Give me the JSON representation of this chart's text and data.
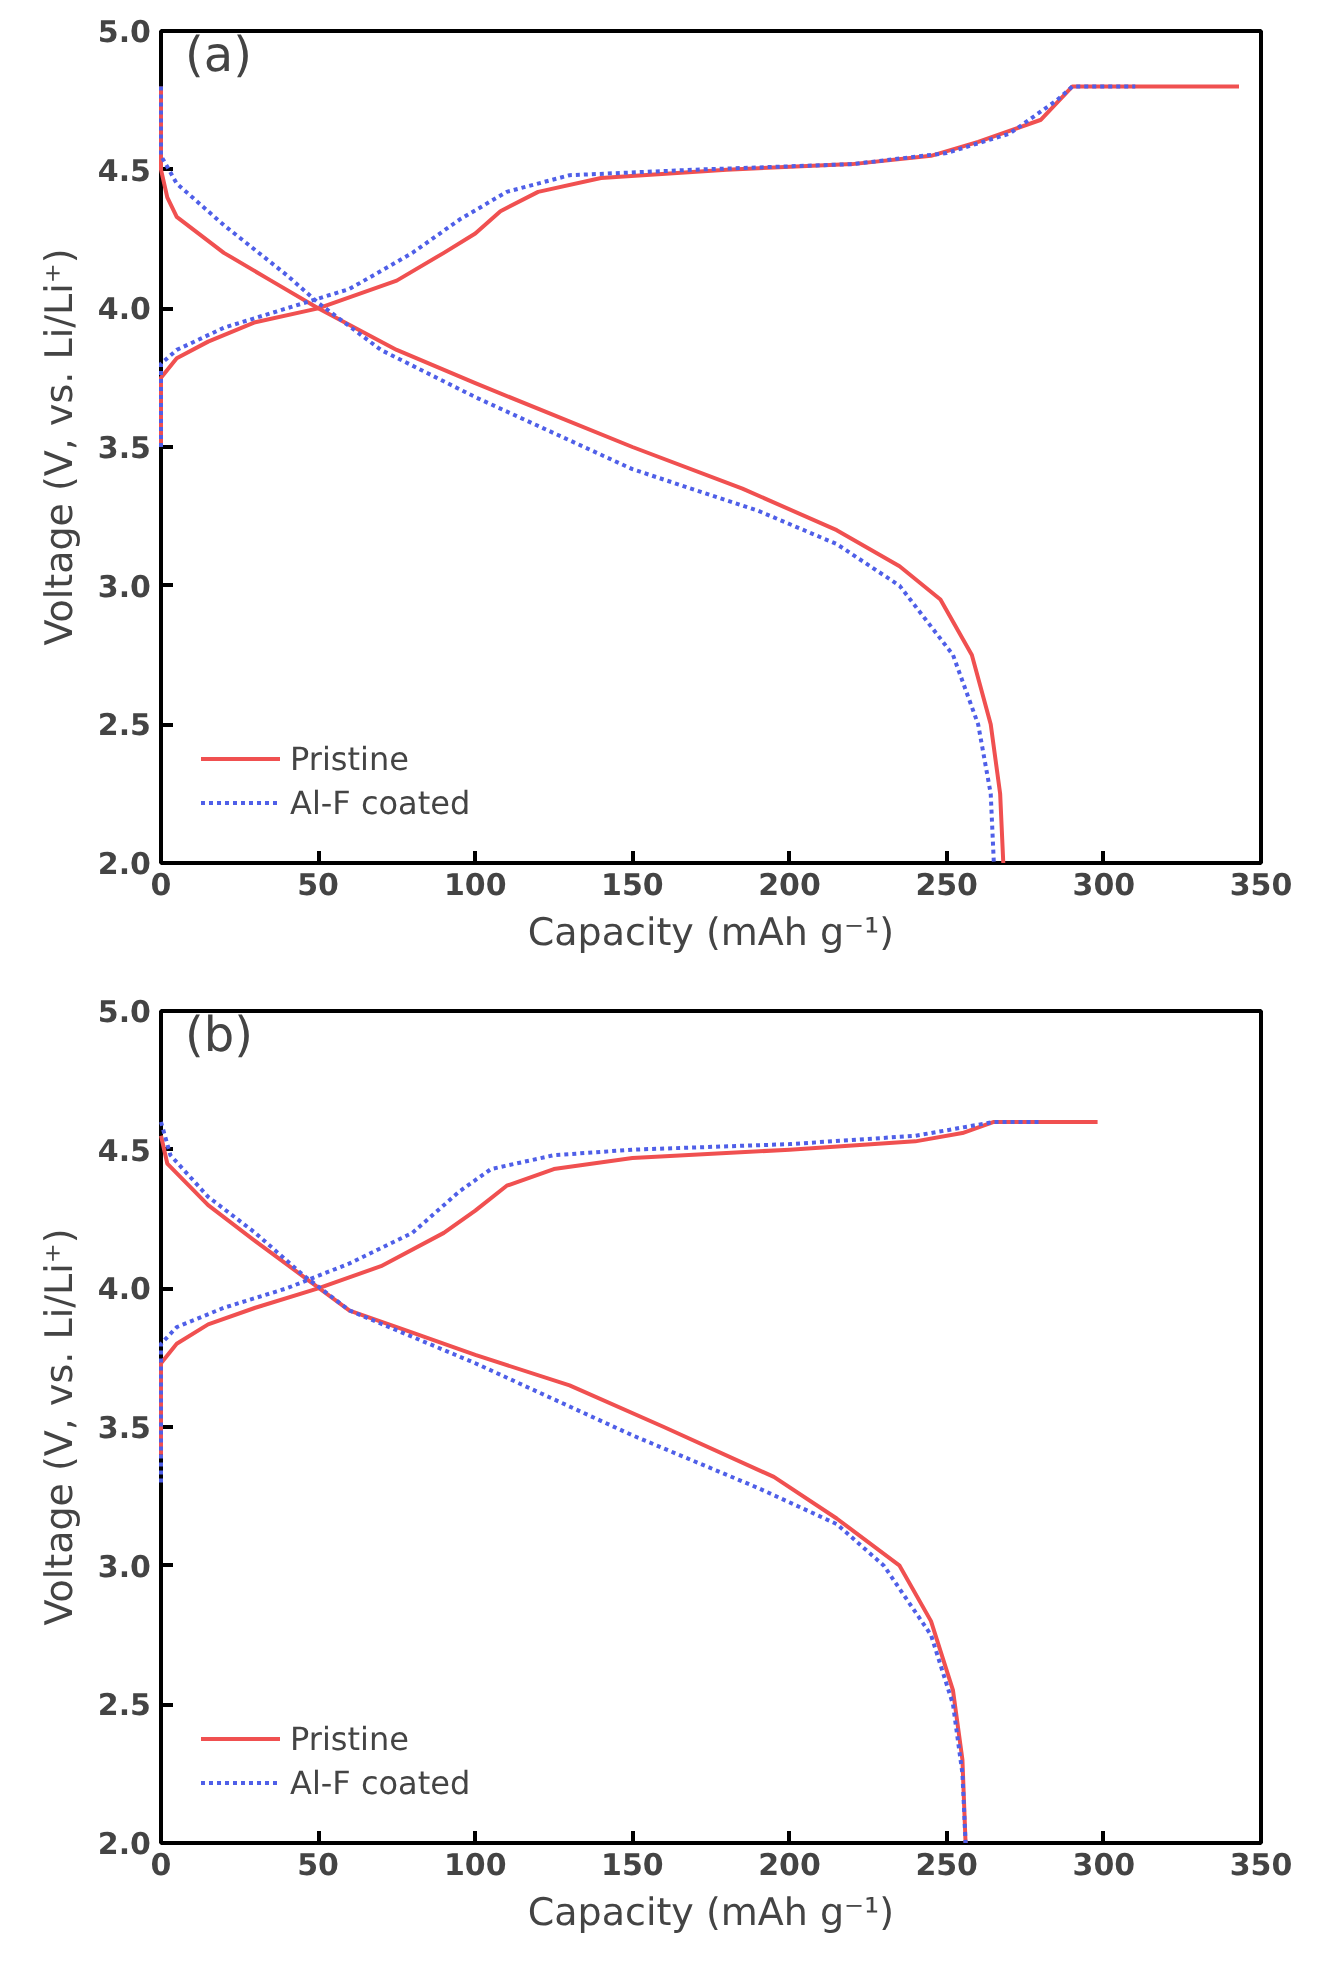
{
  "chart_data": [
    {
      "type": "line",
      "xlabel": "Capacity (mAh g⁻¹)",
      "ylabel": "Voltage (V, vs. Li/Li⁺)",
      "annotations": [
        "(a)"
      ],
      "xlim": [
        0,
        350
      ],
      "ylim": [
        2.0,
        5.0
      ],
      "xticks": [
        0,
        50,
        100,
        150,
        200,
        250,
        300,
        350
      ],
      "yticks": [
        {
          "value": 2.0,
          "label": "2.0"
        },
        2.5,
        {
          "value": 3.0,
          "label": "3.0"
        },
        3.5,
        {
          "value": 4.0,
          "label": "4.0"
        },
        4.5,
        {
          "value": 5.0,
          "label": "5.0"
        }
      ],
      "grid": false,
      "legend": "bottom left",
      "series": [
        {
          "name": "Pristine",
          "color": "#f05050",
          "line_style": "solid",
          "x": [
            0,
            0,
            5,
            15,
            30,
            50,
            75,
            90,
            100,
            108,
            120,
            140,
            180,
            220,
            245,
            260,
            280,
            290,
            343
          ],
          "values": [
            3.5,
            3.75,
            3.82,
            3.88,
            3.95,
            4.0,
            4.1,
            4.2,
            4.27,
            4.35,
            4.42,
            4.47,
            4.5,
            4.52,
            4.55,
            4.6,
            4.68,
            4.8,
            4.8
          ]
        },
        {
          "color": "#f05050",
          "line_style": "solid",
          "x": [
            0,
            0,
            2,
            5,
            20,
            35,
            50,
            75,
            100,
            150,
            185,
            215,
            235,
            248,
            258,
            264,
            267,
            268
          ],
          "values": [
            4.8,
            4.5,
            4.4,
            4.33,
            4.2,
            4.1,
            4.0,
            3.85,
            3.73,
            3.5,
            3.35,
            3.2,
            3.07,
            2.95,
            2.75,
            2.5,
            2.25,
            2.0
          ]
        },
        {
          "name": "Al-F coated",
          "color": "#4f5fe8",
          "line_style": "dotted",
          "x": [
            0,
            0,
            5,
            20,
            40,
            60,
            80,
            95,
            110,
            130,
            170,
            220,
            250,
            270,
            285,
            290,
            310
          ],
          "values": [
            3.5,
            3.8,
            3.85,
            3.93,
            4.0,
            4.07,
            4.2,
            4.32,
            4.42,
            4.48,
            4.5,
            4.52,
            4.56,
            4.63,
            4.75,
            4.8,
            4.8
          ]
        },
        {
          "color": "#4f5fe8",
          "line_style": "dotted",
          "x": [
            0,
            0,
            5,
            20,
            40,
            50,
            70,
            100,
            150,
            190,
            215,
            235,
            252,
            260,
            264,
            265
          ],
          "values": [
            4.8,
            4.55,
            4.45,
            4.3,
            4.12,
            4.02,
            3.85,
            3.68,
            3.42,
            3.27,
            3.15,
            3.0,
            2.75,
            2.5,
            2.25,
            2.0
          ]
        }
      ]
    },
    {
      "type": "line",
      "xlabel": "Capacity (mAh g⁻¹)",
      "ylabel": "Voltage (V, vs. Li/Li⁺)",
      "annotations": [
        "(b)"
      ],
      "xlim": [
        0,
        350
      ],
      "ylim": [
        2.0,
        5.0
      ],
      "xticks": [
        0,
        50,
        100,
        150,
        200,
        250,
        300,
        350
      ],
      "yticks": [
        {
          "value": 2.0,
          "label": "2.0"
        },
        2.5,
        {
          "value": 3.0,
          "label": "3.0"
        },
        3.5,
        {
          "value": 4.0,
          "label": "4.0"
        },
        4.5,
        {
          "value": 5.0,
          "label": "5.0"
        }
      ],
      "grid": false,
      "legend": "bottom left",
      "series": [
        {
          "name": "Pristine",
          "color": "#f05050",
          "line_style": "solid",
          "x": [
            0,
            0,
            5,
            15,
            30,
            50,
            70,
            90,
            100,
            110,
            125,
            150,
            200,
            240,
            255,
            265,
            298
          ],
          "values": [
            3.4,
            3.73,
            3.8,
            3.87,
            3.93,
            4.0,
            4.08,
            4.2,
            4.28,
            4.37,
            4.43,
            4.47,
            4.5,
            4.53,
            4.56,
            4.6,
            4.6
          ]
        },
        {
          "color": "#f05050",
          "line_style": "solid",
          "x": [
            0,
            2,
            15,
            30,
            48,
            60,
            80,
            100,
            130,
            160,
            195,
            215,
            235,
            245,
            252,
            255,
            256
          ],
          "values": [
            4.55,
            4.45,
            4.3,
            4.17,
            4.02,
            3.92,
            3.84,
            3.76,
            3.65,
            3.5,
            3.32,
            3.17,
            3.0,
            2.8,
            2.55,
            2.3,
            2.0
          ]
        },
        {
          "name": "Al-F coated",
          "color": "#4f5fe8",
          "line_style": "dotted",
          "x": [
            0,
            0,
            5,
            20,
            40,
            60,
            80,
            95,
            105,
            125,
            150,
            200,
            240,
            265,
            280
          ],
          "values": [
            3.3,
            3.8,
            3.86,
            3.93,
            4.0,
            4.09,
            4.2,
            4.35,
            4.43,
            4.48,
            4.5,
            4.52,
            4.55,
            4.6,
            4.6
          ]
        },
        {
          "color": "#4f5fe8",
          "line_style": "dotted",
          "x": [
            0,
            3,
            15,
            30,
            45,
            60,
            100,
            150,
            190,
            215,
            230,
            245,
            252,
            255,
            256
          ],
          "values": [
            4.6,
            4.48,
            4.33,
            4.2,
            4.05,
            3.92,
            3.73,
            3.47,
            3.28,
            3.15,
            3.0,
            2.75,
            2.5,
            2.25,
            2.0
          ]
        }
      ]
    }
  ]
}
